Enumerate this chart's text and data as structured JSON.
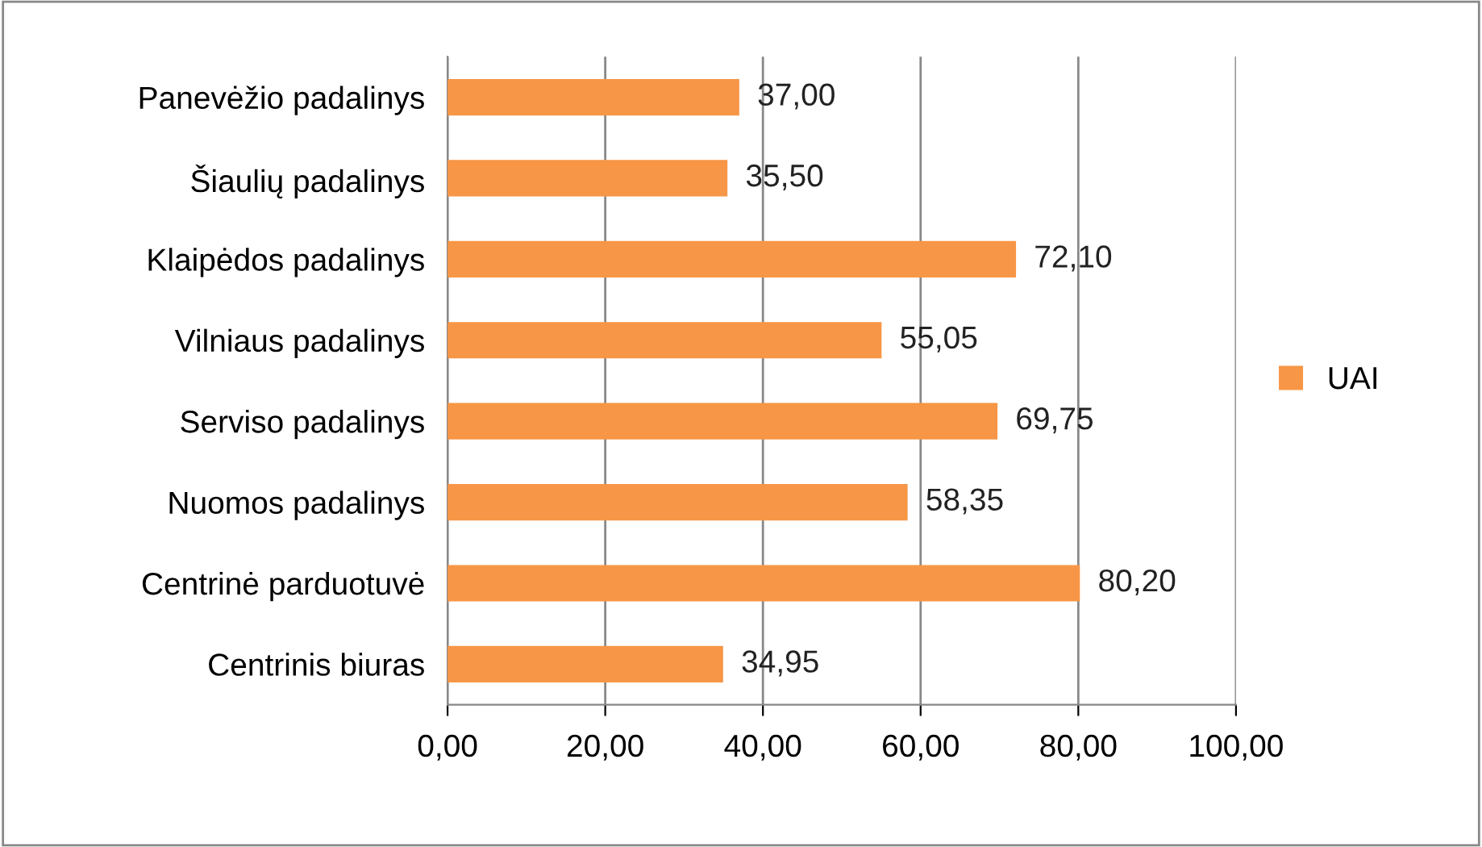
{
  "chart_data": {
    "type": "bar",
    "orientation": "horizontal",
    "categories": [
      "Panevėžio padalinys",
      "Šiaulių padalinys",
      "Klaipėdos padalinys",
      "Vilniaus padalinys",
      "Serviso padalinys",
      "Nuomos padalinys",
      "Centrinė parduotuvė",
      "Centrinis biuras"
    ],
    "series": [
      {
        "name": "UAI",
        "color": "#f79646",
        "values": [
          37.0,
          35.5,
          72.1,
          55.05,
          69.75,
          58.35,
          80.2,
          34.95
        ],
        "value_labels": [
          "37,00",
          "35,50",
          "72,10",
          "55,05",
          "69,75",
          "58,35",
          "80,20",
          "34,95"
        ]
      }
    ],
    "xlim": [
      0,
      100
    ],
    "xticks": [
      {
        "value": 0,
        "label": "0,00"
      },
      {
        "value": 20,
        "label": "20,00"
      },
      {
        "value": 40,
        "label": "40,00"
      },
      {
        "value": 60,
        "label": "60,00"
      },
      {
        "value": 80,
        "label": "80,00"
      },
      {
        "value": 100,
        "label": "100,00"
      }
    ],
    "grid": "x",
    "legend": "right"
  }
}
